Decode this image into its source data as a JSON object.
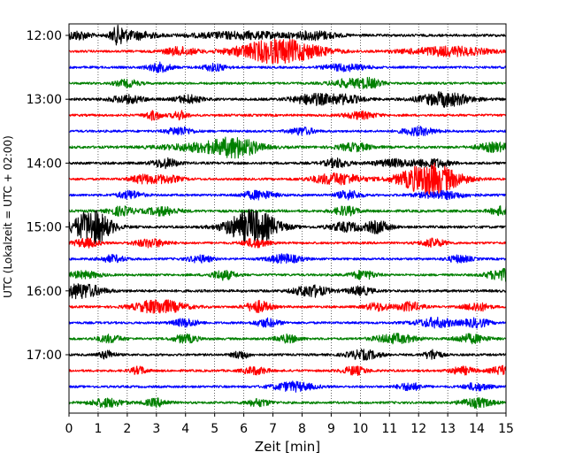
{
  "chart_data": {
    "type": "line",
    "title": "",
    "xlabel": "Zeit  [min]",
    "ylabel": "UTC (Lokalzeit = UTC + 02:00)",
    "xlim": [
      0,
      15
    ],
    "x_ticks": [
      "0",
      "1",
      "2",
      "3",
      "4",
      "5",
      "6",
      "7",
      "8",
      "9",
      "10",
      "11",
      "12",
      "13",
      "14",
      "15"
    ],
    "y_ticks": [
      "12:00",
      "13:00",
      "14:00",
      "15:00",
      "16:00",
      "17:00"
    ],
    "trace_interval_min": 15,
    "trace_start": "12:00",
    "grid": "vertical dotted at each minute",
    "color_cycle": [
      "#000000",
      "#ff0000",
      "#0000ff",
      "#008000"
    ],
    "traces": [
      {
        "start": "12:00",
        "base": 0.45,
        "bursts": [
          [
            0.3,
            0.3,
            1.5
          ],
          [
            1.7,
            0.2,
            3.0
          ],
          [
            2.4,
            0.4,
            1.3
          ],
          [
            6.0,
            1.2,
            1.2
          ],
          [
            8.5,
            0.5,
            1.3
          ]
        ]
      },
      {
        "start": "12:15",
        "base": 0.4,
        "bursts": [
          [
            3.8,
            0.4,
            1.4
          ],
          [
            7.2,
            1.0,
            4.2
          ],
          [
            13.0,
            1.0,
            1.6
          ]
        ]
      },
      {
        "start": "12:30",
        "base": 0.4,
        "bursts": [
          [
            3.1,
            0.3,
            1.5
          ],
          [
            5.0,
            0.3,
            1.2
          ],
          [
            9.5,
            0.5,
            1.2
          ]
        ]
      },
      {
        "start": "12:45",
        "base": 0.4,
        "bursts": [
          [
            2.0,
            0.3,
            1.2
          ],
          [
            9.5,
            0.4,
            1.3
          ],
          [
            10.3,
            0.3,
            1.6
          ]
        ]
      },
      {
        "start": "13:00",
        "base": 0.45,
        "bursts": [
          [
            2.0,
            0.4,
            1.3
          ],
          [
            4.1,
            0.3,
            1.4
          ],
          [
            8.4,
            0.5,
            1.8
          ],
          [
            9.5,
            0.4,
            1.4
          ],
          [
            12.9,
            0.6,
            2.4
          ]
        ]
      },
      {
        "start": "13:15",
        "base": 0.4,
        "bursts": [
          [
            2.9,
            0.2,
            1.6
          ],
          [
            3.8,
            0.2,
            1.4
          ],
          [
            10.0,
            0.4,
            1.2
          ]
        ]
      },
      {
        "start": "13:30",
        "base": 0.4,
        "bursts": [
          [
            3.8,
            0.3,
            1.5
          ],
          [
            8.0,
            0.3,
            1.3
          ],
          [
            12.0,
            0.4,
            1.4
          ]
        ]
      },
      {
        "start": "13:45",
        "base": 0.45,
        "bursts": [
          [
            4.8,
            1.0,
            1.6
          ],
          [
            5.8,
            0.5,
            2.6
          ],
          [
            9.8,
            0.4,
            1.3
          ],
          [
            14.6,
            0.4,
            1.5
          ]
        ]
      },
      {
        "start": "14:00",
        "base": 0.45,
        "bursts": [
          [
            3.3,
            0.3,
            1.6
          ],
          [
            9.2,
            0.3,
            1.5
          ],
          [
            11.2,
            0.5,
            1.2
          ],
          [
            12.5,
            0.4,
            1.4
          ]
        ]
      },
      {
        "start": "14:15",
        "base": 0.4,
        "bursts": [
          [
            2.5,
            0.3,
            1.3
          ],
          [
            3.3,
            0.4,
            1.3
          ],
          [
            9.2,
            0.6,
            2.0
          ],
          [
            12.4,
            0.7,
            5.5
          ]
        ]
      },
      {
        "start": "14:30",
        "base": 0.4,
        "bursts": [
          [
            2.1,
            0.3,
            1.4
          ],
          [
            6.5,
            0.4,
            1.5
          ],
          [
            9.6,
            0.3,
            1.5
          ],
          [
            12.8,
            0.6,
            1.3
          ]
        ]
      },
      {
        "start": "14:45",
        "base": 0.45,
        "bursts": [
          [
            1.8,
            0.3,
            1.5
          ],
          [
            3.2,
            0.4,
            1.4
          ],
          [
            9.5,
            0.3,
            1.5
          ],
          [
            14.9,
            0.3,
            1.5
          ]
        ]
      },
      {
        "start": "15:00",
        "base": 0.45,
        "bursts": [
          [
            0.8,
            0.45,
            6.0
          ],
          [
            6.3,
            0.6,
            6.0
          ],
          [
            9.5,
            0.4,
            1.5
          ],
          [
            10.6,
            0.3,
            2.0
          ]
        ]
      },
      {
        "start": "15:15",
        "base": 0.4,
        "bursts": [
          [
            0.6,
            0.3,
            1.5
          ],
          [
            2.8,
            0.4,
            1.4
          ],
          [
            6.4,
            0.3,
            1.5
          ],
          [
            12.5,
            0.3,
            1.4
          ]
        ]
      },
      {
        "start": "15:30",
        "base": 0.4,
        "bursts": [
          [
            1.5,
            0.3,
            1.2
          ],
          [
            4.5,
            0.3,
            1.2
          ],
          [
            7.4,
            0.4,
            1.5
          ],
          [
            13.4,
            0.3,
            1.2
          ]
        ]
      },
      {
        "start": "15:45",
        "base": 0.4,
        "bursts": [
          [
            0.5,
            0.4,
            1.2
          ],
          [
            5.3,
            0.3,
            1.6
          ],
          [
            10.1,
            0.3,
            1.5
          ],
          [
            14.9,
            0.4,
            2.0
          ]
        ]
      },
      {
        "start": "16:00",
        "base": 0.45,
        "bursts": [
          [
            0.4,
            0.5,
            2.6
          ],
          [
            8.3,
            0.4,
            2.0
          ],
          [
            10.0,
            0.3,
            1.4
          ]
        ]
      },
      {
        "start": "16:15",
        "base": 0.4,
        "bursts": [
          [
            3.1,
            0.6,
            2.4
          ],
          [
            6.5,
            0.3,
            2.0
          ],
          [
            10.6,
            0.3,
            1.4
          ],
          [
            11.7,
            0.3,
            1.6
          ],
          [
            14.0,
            0.3,
            1.5
          ]
        ]
      },
      {
        "start": "16:30",
        "base": 0.4,
        "bursts": [
          [
            4.0,
            0.3,
            1.4
          ],
          [
            6.8,
            0.3,
            1.4
          ],
          [
            12.6,
            0.5,
            1.6
          ],
          [
            14.0,
            0.3,
            1.5
          ]
        ]
      },
      {
        "start": "16:45",
        "base": 0.4,
        "bursts": [
          [
            1.4,
            0.3,
            1.3
          ],
          [
            4.0,
            0.3,
            1.4
          ],
          [
            7.5,
            0.3,
            1.3
          ],
          [
            11.2,
            0.5,
            1.6
          ],
          [
            13.8,
            0.4,
            1.5
          ]
        ]
      },
      {
        "start": "17:00",
        "base": 0.4,
        "bursts": [
          [
            1.3,
            0.2,
            1.4
          ],
          [
            5.9,
            0.2,
            1.4
          ],
          [
            10.1,
            0.4,
            1.6
          ],
          [
            12.5,
            0.2,
            1.8
          ]
        ]
      },
      {
        "start": "17:15",
        "base": 0.4,
        "bursts": [
          [
            2.4,
            0.2,
            1.3
          ],
          [
            6.4,
            0.3,
            1.3
          ],
          [
            9.8,
            0.3,
            1.4
          ],
          [
            13.5,
            0.3,
            1.3
          ],
          [
            14.9,
            0.3,
            1.6
          ]
        ]
      },
      {
        "start": "17:30",
        "base": 0.4,
        "bursts": [
          [
            7.7,
            0.5,
            1.6
          ],
          [
            11.7,
            0.3,
            1.3
          ],
          [
            14.0,
            0.3,
            1.3
          ]
        ]
      },
      {
        "start": "17:45",
        "base": 0.4,
        "bursts": [
          [
            1.3,
            0.4,
            1.5
          ],
          [
            3.0,
            0.3,
            1.3
          ],
          [
            6.5,
            0.3,
            1.2
          ],
          [
            14.0,
            0.4,
            1.6
          ]
        ]
      }
    ]
  }
}
